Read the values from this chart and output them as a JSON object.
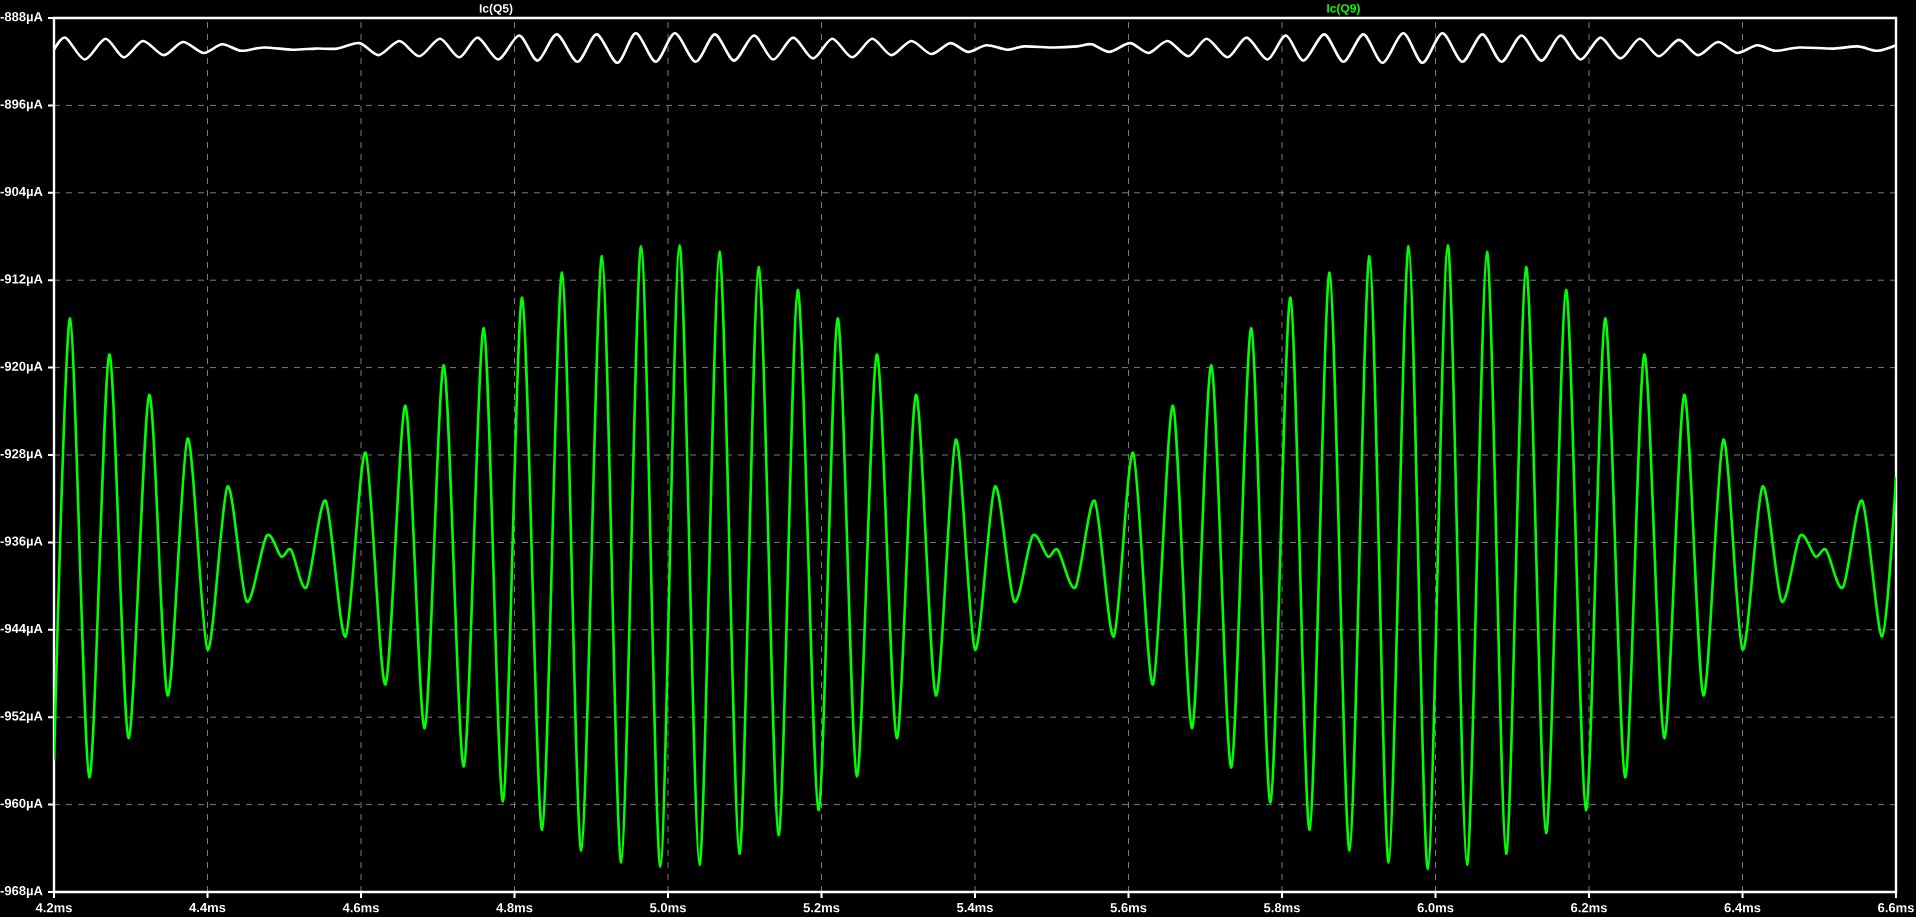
{
  "chart_data": {
    "type": "line",
    "xlim": [
      4.2,
      6.6
    ],
    "ylim": [
      -968,
      -888
    ],
    "xticks": [
      {
        "value": 4.2,
        "label": "4.2ms"
      },
      {
        "value": 4.4,
        "label": "4.4ms"
      },
      {
        "value": 4.6,
        "label": "4.6ms"
      },
      {
        "value": 4.8,
        "label": "4.8ms"
      },
      {
        "value": 5.0,
        "label": "5.0ms"
      },
      {
        "value": 5.2,
        "label": "5.2ms"
      },
      {
        "value": 5.4,
        "label": "5.4ms"
      },
      {
        "value": 5.6,
        "label": "5.6ms"
      },
      {
        "value": 5.8,
        "label": "5.8ms"
      },
      {
        "value": 6.0,
        "label": "6.0ms"
      },
      {
        "value": 6.2,
        "label": "6.2ms"
      },
      {
        "value": 6.4,
        "label": "6.4ms"
      },
      {
        "value": 6.6,
        "label": "6.6ms"
      }
    ],
    "yticks": [
      {
        "value": -968,
        "label": "-968µA"
      },
      {
        "value": -960,
        "label": "-960µA"
      },
      {
        "value": -952,
        "label": "-952µA"
      },
      {
        "value": -944,
        "label": "-944µA"
      },
      {
        "value": -936,
        "label": "-936µA"
      },
      {
        "value": -928,
        "label": "-928µA"
      },
      {
        "value": -920,
        "label": "-920µA"
      },
      {
        "value": -912,
        "label": "-912µA"
      },
      {
        "value": -904,
        "label": "-904µA"
      },
      {
        "value": -896,
        "label": "-896µA"
      },
      {
        "value": -888,
        "label": "-888µA"
      }
    ],
    "grid": true,
    "line_style": "solid",
    "series": [
      {
        "name": "Ic(Q5)",
        "color": "#ffffff",
        "x": [
          4.2,
          4.215,
          4.24,
          4.267,
          4.291,
          4.316,
          4.343,
          4.368,
          4.395,
          4.419,
          4.444,
          4.473,
          4.511,
          4.541,
          4.569,
          4.598,
          4.623,
          4.65,
          4.676,
          4.703,
          4.728,
          4.752,
          4.779,
          4.806,
          4.83,
          4.855,
          4.882,
          4.907,
          4.934,
          4.958,
          4.984,
          5.009,
          5.036,
          5.061,
          5.086,
          5.112,
          5.137,
          5.163,
          5.189,
          5.214,
          5.24,
          5.266,
          5.291,
          5.317,
          5.343,
          5.368,
          5.391,
          5.415,
          5.442,
          5.464,
          5.503,
          5.533,
          5.552,
          5.575,
          5.602,
          5.626,
          5.651,
          5.678,
          5.702,
          5.729,
          5.754,
          5.781,
          5.805,
          5.828,
          5.855,
          5.88,
          5.906,
          5.931,
          5.958,
          5.983,
          6.009,
          6.035,
          6.061,
          6.086,
          6.112,
          6.138,
          6.163,
          6.189,
          6.215,
          6.241,
          6.266,
          6.291,
          6.317,
          6.342,
          6.368,
          6.393,
          6.419,
          6.443,
          6.474,
          6.519,
          6.55,
          6.576,
          6.6
        ],
        "values": [
          -890.9,
          -889.8,
          -891.8,
          -889.9,
          -891.6,
          -890.1,
          -891.4,
          -890.2,
          -891.2,
          -890.4,
          -891.0,
          -890.7,
          -890.9,
          -890.8,
          -890.8,
          -890.3,
          -891.4,
          -890.1,
          -891.5,
          -889.9,
          -891.6,
          -889.8,
          -891.8,
          -889.6,
          -891.9,
          -889.5,
          -892.0,
          -889.5,
          -892.1,
          -889.4,
          -892.0,
          -889.4,
          -892.0,
          -889.5,
          -891.9,
          -889.6,
          -891.8,
          -889.8,
          -891.7,
          -889.9,
          -891.6,
          -889.9,
          -891.4,
          -890.1,
          -891.3,
          -890.3,
          -891.1,
          -890.5,
          -890.9,
          -890.6,
          -890.7,
          -890.6,
          -890.4,
          -891.1,
          -890.3,
          -891.2,
          -890.1,
          -891.5,
          -889.9,
          -891.6,
          -889.8,
          -891.8,
          -889.6,
          -891.9,
          -889.5,
          -892.0,
          -889.5,
          -892.1,
          -889.4,
          -892.1,
          -889.4,
          -892.0,
          -889.5,
          -892.0,
          -889.6,
          -891.9,
          -889.6,
          -891.8,
          -889.8,
          -891.7,
          -889.9,
          -891.5,
          -890.0,
          -891.4,
          -890.2,
          -891.2,
          -890.5,
          -891.0,
          -890.7,
          -890.8,
          -890.6,
          -891.0,
          -890.5
        ]
      },
      {
        "name": "Ic(Q9)",
        "color": "#00ff00",
        "x": [
          4.2,
          4.221,
          4.246,
          4.272,
          4.297,
          4.324,
          4.348,
          4.374,
          4.4,
          4.426,
          4.451,
          4.477,
          4.496,
          4.509,
          4.529,
          4.554,
          4.58,
          4.606,
          4.632,
          4.658,
          4.683,
          4.708,
          4.734,
          4.76,
          4.785,
          4.81,
          4.836,
          4.862,
          4.887,
          4.914,
          4.939,
          4.965,
          4.99,
          5.015,
          5.041,
          5.067,
          5.093,
          5.118,
          5.144,
          5.169,
          5.196,
          5.221,
          5.246,
          5.272,
          5.298,
          5.323,
          5.349,
          5.375,
          5.4,
          5.426,
          5.451,
          5.475,
          5.495,
          5.508,
          5.531,
          5.556,
          5.581,
          5.606,
          5.632,
          5.658,
          5.683,
          5.708,
          5.734,
          5.76,
          5.785,
          5.811,
          5.836,
          5.862,
          5.888,
          5.914,
          5.939,
          5.965,
          5.99,
          6.016,
          6.041,
          6.067,
          6.092,
          6.118,
          6.144,
          6.17,
          6.196,
          6.221,
          6.247,
          6.272,
          6.298,
          6.324,
          6.349,
          6.375,
          6.4,
          6.426,
          6.451,
          6.475,
          6.495,
          6.509,
          6.531,
          6.556,
          6.582,
          6.6
        ],
        "values": [
          -955.9,
          -915.5,
          -957.5,
          -918.8,
          -953.9,
          -922.5,
          -950.0,
          -926.5,
          -945.8,
          -930.9,
          -941.4,
          -935.4,
          -937.3,
          -936.7,
          -940.1,
          -932.2,
          -944.6,
          -927.8,
          -949.0,
          -923.5,
          -953.0,
          -919.8,
          -956.5,
          -916.4,
          -959.7,
          -913.6,
          -962.3,
          -911.3,
          -964.2,
          -909.8,
          -965.3,
          -908.9,
          -965.7,
          -908.8,
          -965.5,
          -909.4,
          -964.5,
          -910.8,
          -962.8,
          -912.9,
          -960.5,
          -915.5,
          -957.4,
          -918.8,
          -953.9,
          -922.5,
          -950.0,
          -926.6,
          -945.8,
          -930.9,
          -941.4,
          -935.4,
          -937.3,
          -936.7,
          -940.1,
          -932.2,
          -944.6,
          -927.8,
          -949.0,
          -923.5,
          -953.0,
          -919.8,
          -956.6,
          -916.4,
          -959.8,
          -913.6,
          -962.3,
          -911.3,
          -964.2,
          -909.8,
          -965.3,
          -908.9,
          -965.9,
          -908.8,
          -965.5,
          -909.4,
          -964.5,
          -910.8,
          -962.6,
          -912.9,
          -960.5,
          -915.5,
          -957.5,
          -918.8,
          -953.9,
          -922.5,
          -950.0,
          -926.6,
          -945.8,
          -930.9,
          -941.4,
          -935.4,
          -937.3,
          -936.7,
          -940.1,
          -932.2,
          -944.6,
          -930.0
        ]
      }
    ]
  }
}
